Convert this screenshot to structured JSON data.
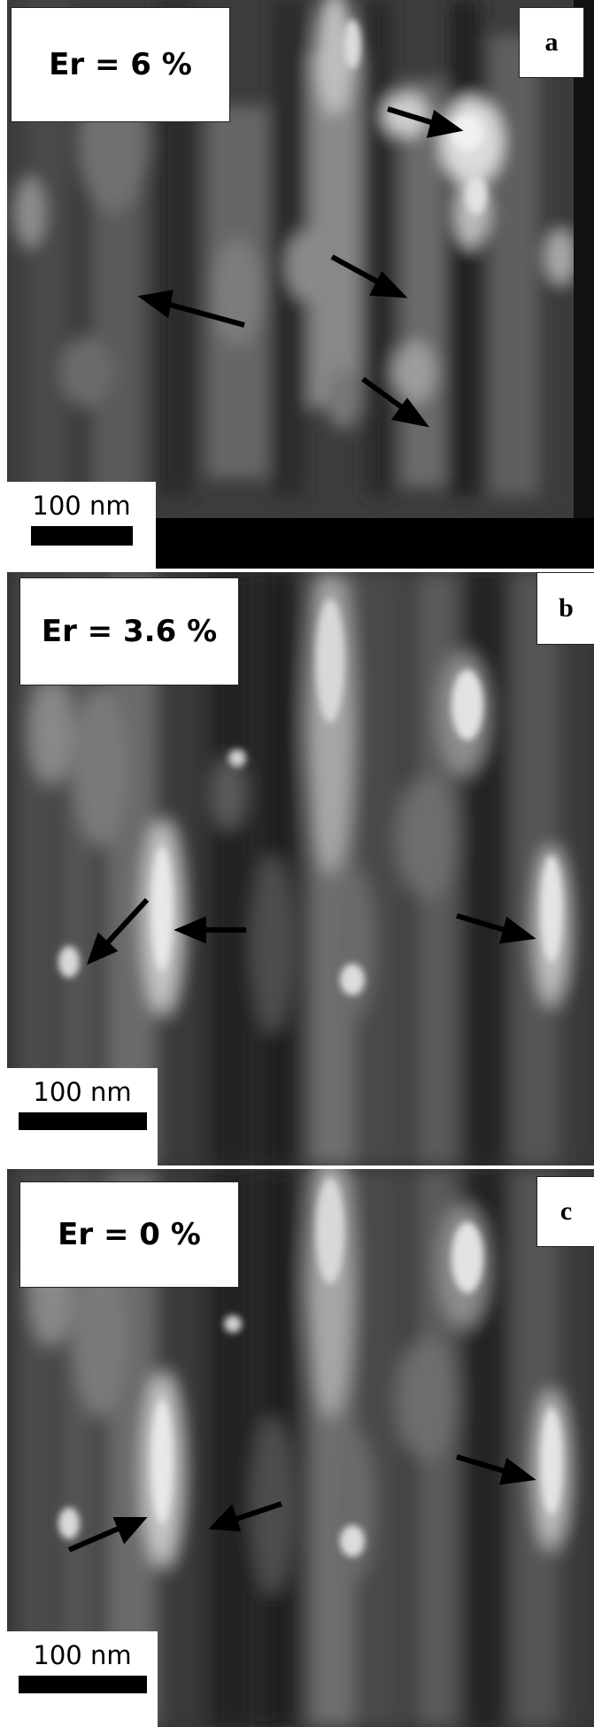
{
  "panels": [
    {
      "id": "a",
      "letter": "a",
      "er_label": "Er = 6 %",
      "scale_label": "100 nm"
    },
    {
      "id": "b",
      "letter": "b",
      "er_label": "Er = 3.6 %",
      "scale_label": "100 nm"
    },
    {
      "id": "c",
      "letter": "c",
      "er_label": "Er = 0 %",
      "scale_label": "100 nm"
    }
  ]
}
